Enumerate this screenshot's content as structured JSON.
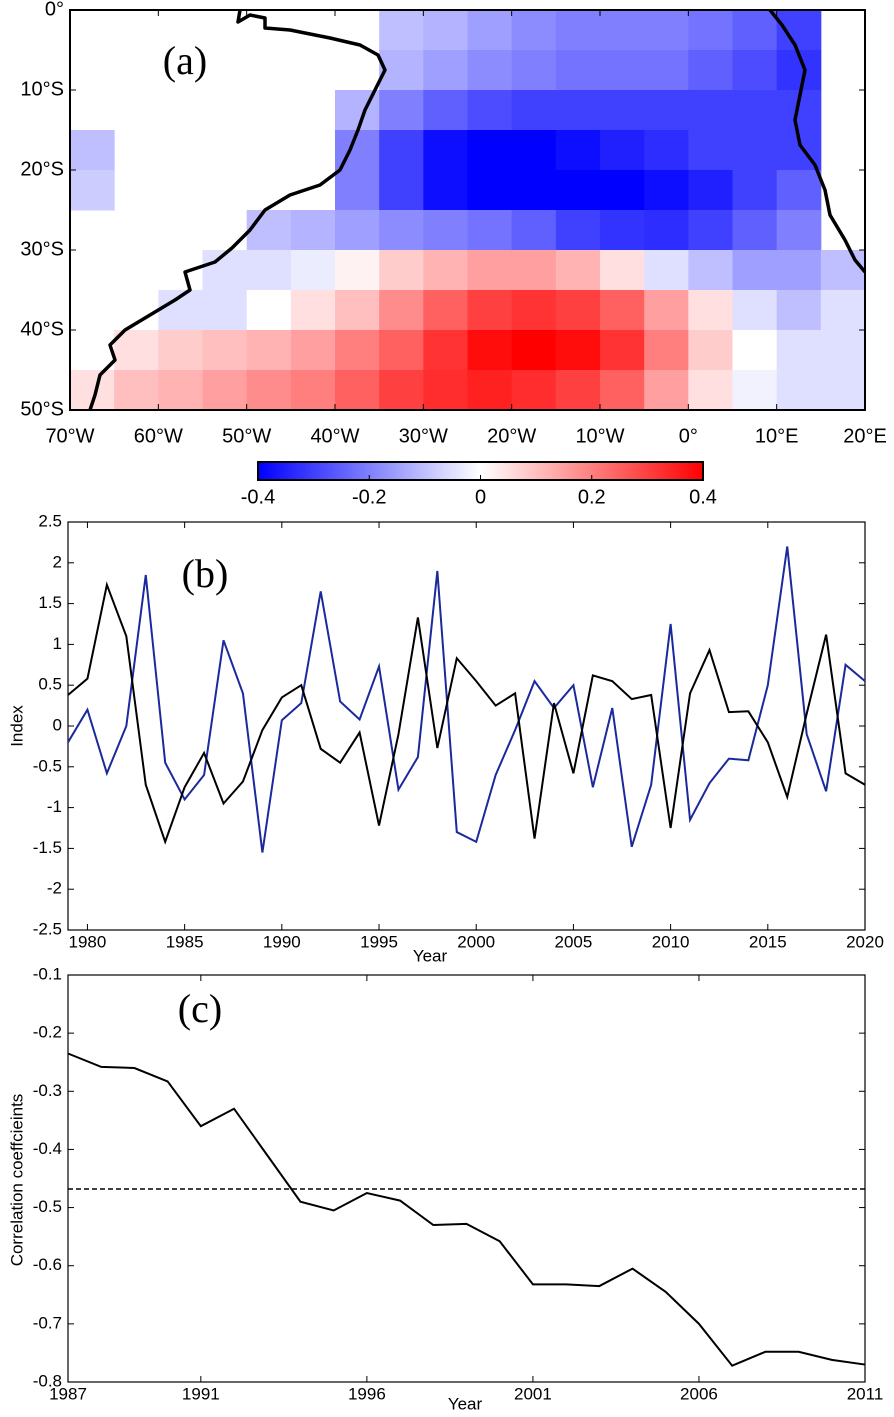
{
  "chart_data": [
    {
      "type": "heatmap",
      "title": "(a)",
      "x": [
        -67.5,
        -62.5,
        -57.5,
        -52.5,
        -47.5,
        -42.5,
        -37.5,
        -32.5,
        -27.5,
        -22.5,
        -17.5,
        -12.5,
        -7.5,
        -2.5,
        2.5,
        7.5,
        12.5,
        17.5
      ],
      "y": [
        -2.5,
        -7.5,
        -12.5,
        -17.5,
        -22.5,
        -27.5,
        -32.5,
        -37.5,
        -42.5,
        -47.5
      ],
      "values": [
        [
          null,
          null,
          null,
          null,
          null,
          null,
          null,
          -0.1,
          -0.12,
          -0.15,
          -0.18,
          -0.2,
          -0.2,
          -0.2,
          -0.22,
          -0.25,
          -0.3,
          null
        ],
        [
          null,
          null,
          null,
          null,
          null,
          null,
          null,
          -0.12,
          -0.15,
          -0.18,
          -0.2,
          -0.22,
          -0.22,
          -0.22,
          -0.25,
          -0.28,
          -0.32,
          null
        ],
        [
          null,
          null,
          null,
          null,
          null,
          null,
          -0.12,
          -0.2,
          -0.25,
          -0.28,
          -0.3,
          -0.3,
          -0.3,
          -0.3,
          -0.3,
          -0.3,
          -0.3,
          null
        ],
        [
          -0.1,
          null,
          null,
          null,
          null,
          null,
          -0.2,
          -0.3,
          -0.38,
          -0.4,
          -0.4,
          -0.38,
          -0.35,
          -0.33,
          -0.3,
          -0.3,
          -0.3,
          null
        ],
        [
          -0.08,
          null,
          null,
          null,
          null,
          null,
          -0.2,
          -0.3,
          -0.38,
          -0.4,
          -0.4,
          -0.4,
          -0.4,
          -0.38,
          -0.35,
          -0.3,
          -0.25,
          null
        ],
        [
          null,
          null,
          null,
          null,
          -0.1,
          -0.12,
          -0.15,
          -0.18,
          -0.2,
          -0.22,
          -0.25,
          -0.3,
          -0.32,
          -0.33,
          -0.3,
          -0.25,
          -0.2,
          null
        ],
        [
          null,
          null,
          null,
          -0.05,
          -0.05,
          -0.03,
          0.02,
          0.08,
          0.12,
          0.15,
          0.15,
          0.12,
          0.05,
          -0.05,
          -0.1,
          -0.15,
          -0.15,
          -0.1
        ],
        [
          null,
          null,
          -0.05,
          -0.05,
          0,
          0.05,
          0.1,
          0.18,
          0.25,
          0.3,
          0.32,
          0.3,
          0.25,
          0.15,
          0.05,
          -0.05,
          -0.1,
          -0.05
        ],
        [
          null,
          0.05,
          0.08,
          0.1,
          0.12,
          0.15,
          0.2,
          0.25,
          0.32,
          0.38,
          0.4,
          0.38,
          0.32,
          0.2,
          0.08,
          0,
          -0.05,
          -0.05
        ],
        [
          0.05,
          0.1,
          0.12,
          0.15,
          0.18,
          0.2,
          0.25,
          0.3,
          0.33,
          0.35,
          0.33,
          0.3,
          0.25,
          0.15,
          0.05,
          -0.02,
          -0.05,
          -0.05
        ]
      ],
      "xlim": [
        -70,
        20
      ],
      "xticks": [
        {
          "value": -70,
          "label": "70°W"
        },
        {
          "value": -60,
          "label": "60°W"
        },
        {
          "value": -50,
          "label": "50°W"
        },
        {
          "value": -40,
          "label": "40°W"
        },
        {
          "value": -30,
          "label": "30°W"
        },
        {
          "value": -20,
          "label": "20°W"
        },
        {
          "value": -10,
          "label": "10°W"
        },
        {
          "value": 0,
          "label": "0°"
        },
        {
          "value": 10,
          "label": "10°E"
        },
        {
          "value": 20,
          "label": "20°E"
        }
      ],
      "ylim": [
        -50,
        0
      ],
      "yticks": [
        {
          "value": 0,
          "label": "0°"
        },
        {
          "value": -10,
          "label": "10°S"
        },
        {
          "value": -20,
          "label": "20°S"
        },
        {
          "value": -30,
          "label": "30°S"
        },
        {
          "value": -40,
          "label": "40°S"
        },
        {
          "value": -50,
          "label": "50°S"
        }
      ],
      "colormap": [
        "#0000ff",
        "#ffffff",
        "#ff0000"
      ],
      "clim": [
        -0.4,
        0.4
      ],
      "colorbar_ticks": [
        -0.4,
        -0.2,
        0,
        0.2,
        0.4
      ]
    },
    {
      "type": "line",
      "title": "(b)",
      "xlabel": "Year",
      "ylabel": "Index",
      "x": [
        1979,
        1980,
        1981,
        1982,
        1983,
        1984,
        1985,
        1986,
        1987,
        1988,
        1989,
        1990,
        1991,
        1992,
        1993,
        1994,
        1995,
        1996,
        1997,
        1998,
        1999,
        2000,
        2001,
        2002,
        2003,
        2004,
        2005,
        2006,
        2007,
        2008,
        2009,
        2010,
        2011,
        2012,
        2013,
        2014,
        2015,
        2016,
        2017,
        2018,
        2019,
        2020
      ],
      "series": [
        {
          "color": "#1a2a9c",
          "values": [
            -0.2,
            0.2,
            -0.58,
            0.0,
            1.85,
            -0.45,
            -0.9,
            -0.6,
            1.05,
            0.4,
            -1.55,
            0.07,
            0.28,
            1.65,
            0.3,
            0.08,
            0.73,
            -0.78,
            -0.38,
            1.9,
            -1.3,
            -1.42,
            -0.6,
            -0.05,
            0.55,
            0.22,
            0.5,
            -0.75,
            0.22,
            -1.48,
            -0.72,
            1.25,
            -1.15,
            -0.7,
            -0.4,
            -0.42,
            0.5,
            2.2,
            -0.1,
            -0.8,
            0.75,
            0.55
          ]
        },
        {
          "color": "#000000",
          "values": [
            0.38,
            0.58,
            1.73,
            1.1,
            -0.72,
            -1.42,
            -0.75,
            -0.33,
            -0.95,
            -0.68,
            -0.05,
            0.35,
            0.5,
            -0.28,
            -0.45,
            -0.08,
            -1.22,
            -0.1,
            1.33,
            -0.27,
            0.83,
            0.55,
            0.25,
            0.4,
            -1.38,
            0.28,
            -0.58,
            0.62,
            0.55,
            0.33,
            0.38,
            -1.25,
            0.4,
            0.93,
            0.17,
            0.18,
            -0.2,
            -0.87,
            0.15,
            1.12,
            -0.58,
            -0.72
          ]
        }
      ],
      "xlim": [
        1979,
        2020
      ],
      "xticks": [
        1980,
        1985,
        1990,
        1995,
        2000,
        2005,
        2010,
        2015,
        2020
      ],
      "ylim": [
        -2.5,
        2.5
      ],
      "yticks": [
        -2.5,
        -2,
        -1.5,
        -1,
        -0.5,
        0,
        0.5,
        1,
        1.5,
        2,
        2.5
      ]
    },
    {
      "type": "line",
      "title": "(c)",
      "xlabel": "Year",
      "ylabel": "Correlation coeffcieints",
      "x": [
        1987,
        1988,
        1989,
        1990,
        1991,
        1992,
        1993,
        1994,
        1995,
        1996,
        1997,
        1998,
        1999,
        2000,
        2001,
        2002,
        2003,
        2004,
        2005,
        2006,
        2007,
        2008,
        2009,
        2010,
        2011
      ],
      "series": [
        {
          "color": "#000000",
          "values": [
            -0.235,
            -0.258,
            -0.26,
            -0.283,
            -0.36,
            -0.33,
            -0.41,
            -0.49,
            -0.505,
            -0.475,
            -0.488,
            -0.53,
            -0.528,
            -0.558,
            -0.632,
            -0.632,
            -0.635,
            -0.605,
            -0.645,
            -0.7,
            -0.772,
            -0.748,
            -0.748,
            -0.762,
            -0.77
          ]
        }
      ],
      "threshold": -0.468,
      "xlim": [
        1987,
        2011
      ],
      "xticks": [
        1987,
        1991,
        1996,
        2001,
        2006,
        2011
      ],
      "ylim": [
        -0.8,
        -0.1
      ],
      "yticks": [
        -0.8,
        -0.7,
        -0.6,
        -0.5,
        -0.4,
        -0.3,
        -0.2,
        -0.1
      ]
    }
  ]
}
